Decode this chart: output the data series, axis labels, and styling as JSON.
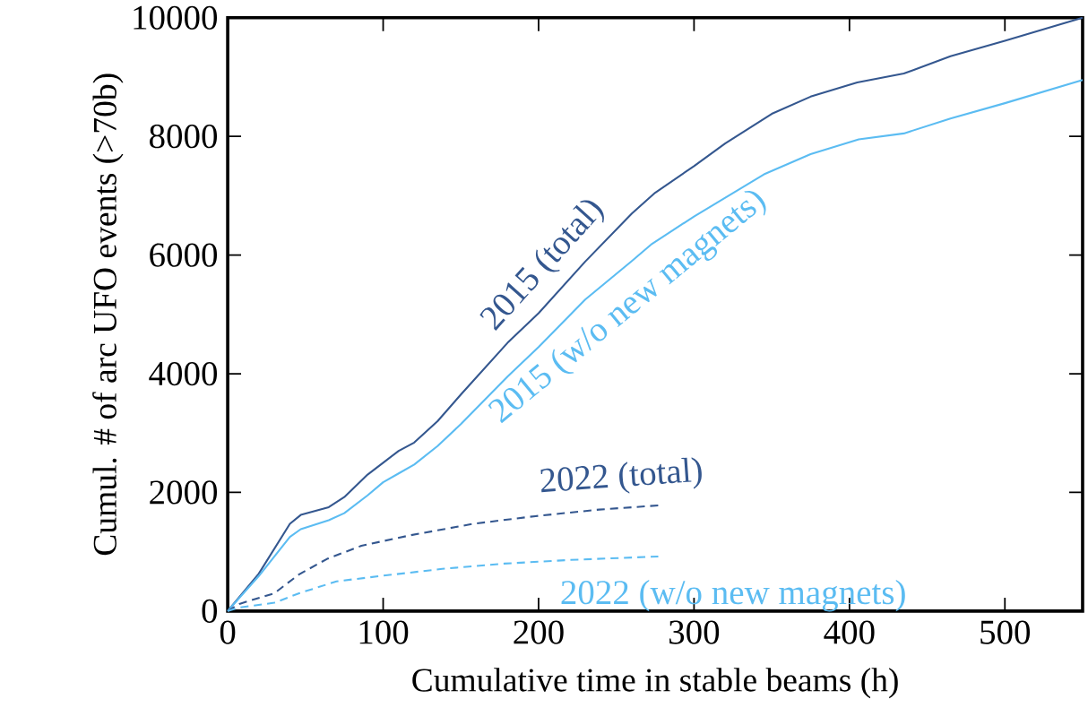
{
  "chart_data": {
    "type": "line",
    "xlabel": "Cumulative time in stable beams (h)",
    "ylabel": "Cumul. # of arc UFO events (>70b)",
    "xlim": [
      0,
      550
    ],
    "ylim": [
      0,
      10000
    ],
    "xticks": [
      0,
      100,
      200,
      300,
      400,
      500
    ],
    "yticks": [
      0,
      2000,
      4000,
      6000,
      8000,
      10000
    ],
    "grid": false,
    "legend": false,
    "marker": "none",
    "series": [
      {
        "name": "2015 (total)",
        "color": "#34578f",
        "line_style": "solid",
        "x": [
          0,
          20,
          40,
          47,
          65,
          75,
          90,
          100,
          110,
          120,
          135,
          150,
          180,
          200,
          230,
          260,
          275,
          300,
          320,
          350,
          375,
          405,
          435,
          465,
          500,
          550
        ],
        "values": [
          0,
          630,
          1470,
          1620,
          1750,
          1920,
          2300,
          2500,
          2700,
          2840,
          3200,
          3650,
          4520,
          5020,
          5890,
          6700,
          7050,
          7500,
          7880,
          8380,
          8670,
          8910,
          9060,
          9350,
          9610,
          10000
        ]
      },
      {
        "name": "2015 (w/o new magnets)",
        "color": "#5bbcf2",
        "line_style": "solid",
        "x": [
          0,
          20,
          40,
          47,
          65,
          75,
          90,
          100,
          110,
          120,
          135,
          150,
          180,
          200,
          230,
          260,
          273,
          300,
          345,
          375,
          406,
          435,
          465,
          500,
          550
        ],
        "values": [
          0,
          590,
          1250,
          1380,
          1530,
          1650,
          1950,
          2170,
          2320,
          2470,
          2780,
          3150,
          3950,
          4450,
          5250,
          5900,
          6190,
          6650,
          7360,
          7700,
          7950,
          8050,
          8300,
          8560,
          8950
        ]
      },
      {
        "name": "2022 (total)",
        "color": "#34578f",
        "line_style": "dashed",
        "x": [
          0,
          7.5,
          30,
          46,
          64,
          86,
          118,
          158,
          198,
          239,
          277
        ],
        "values": [
          0,
          120,
          300,
          620,
          880,
          1100,
          1280,
          1470,
          1600,
          1710,
          1780
        ]
      },
      {
        "name": "2022 (w/o new magnets)",
        "color": "#5bbcf2",
        "line_style": "dashed",
        "x": [
          0,
          7.5,
          30,
          46,
          70,
          98,
          138,
          178,
          219,
          277
        ],
        "values": [
          0,
          60,
          140,
          300,
          500,
          590,
          710,
          800,
          860,
          920
        ]
      }
    ]
  }
}
